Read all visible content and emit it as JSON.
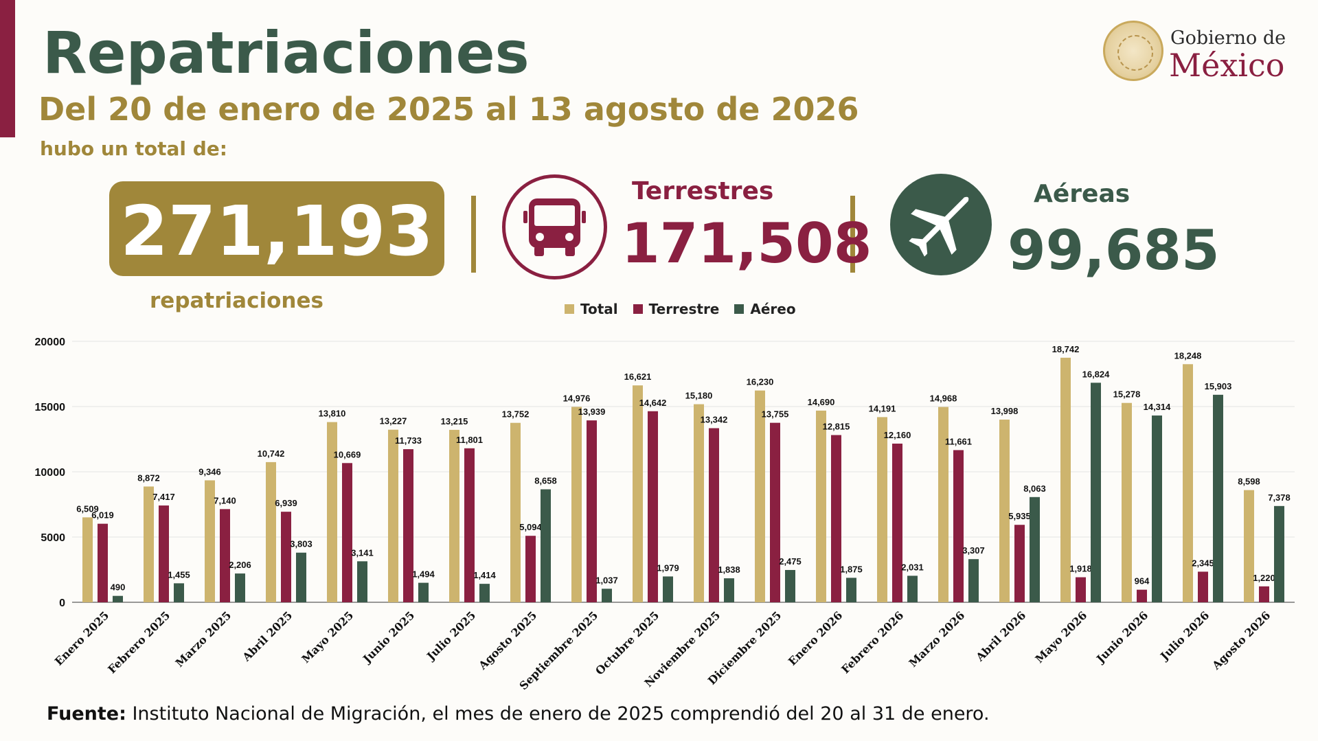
{
  "header": {
    "title": "Repatriaciones",
    "subtitle": "Del 20 de enero de 2025 al 13 agosto de 2026",
    "lead": "hubo un total de:"
  },
  "logo": {
    "line1": "Gobierno de",
    "line2": "México"
  },
  "summary": {
    "total_value": "271,193",
    "total_caption": "repatriaciones",
    "terrestres_label": "Terrestres",
    "terrestres_value": "171,508",
    "aereas_label": "Aéreas",
    "aereas_value": "99,685",
    "icons": [
      "bus-icon",
      "airplane-icon"
    ]
  },
  "colors": {
    "gold": "#a0873a",
    "total_bar": "#cdb46e",
    "terrestre_bar": "#8a2041",
    "aereo_bar": "#3b5a4a",
    "title_green": "#3b5a4a"
  },
  "footer": {
    "source_label": "Fuente:",
    "source_text": " Instituto Nacional de Migración, el mes de enero de 2025 comprendió del 20 al 31 de enero."
  },
  "chart_data": {
    "type": "bar",
    "categories": [
      "Enero 2025",
      "Febrero 2025",
      "Marzo 2025",
      "Abril 2025",
      "Mayo 2025",
      "Junio 2025",
      "Julio 2025",
      "Agosto 2025",
      "Septiembre 2025",
      "Octubre 2025",
      "Noviembre 2025",
      "Diciembre 2025",
      "Enero 2026",
      "Febrero 2026",
      "Marzo 2026",
      "Abril 2026",
      "Mayo 2026",
      "Junio 2026",
      "Julio 2026",
      "Agosto 2026"
    ],
    "series": [
      {
        "name": "Total",
        "values": [
          6509,
          8872,
          9346,
          10742,
          13810,
          13227,
          13215,
          13752,
          14976,
          16621,
          15180,
          16230,
          14690,
          14191,
          14968,
          13998,
          18742,
          15278,
          18248,
          8598
        ]
      },
      {
        "name": "Terrestre",
        "values": [
          6019,
          7417,
          7140,
          6939,
          10669,
          11733,
          11801,
          5094,
          13939,
          14642,
          13342,
          13755,
          12815,
          12160,
          11661,
          5935,
          1918,
          964,
          2345,
          1220
        ]
      },
      {
        "name": "Aéreo",
        "values": [
          490,
          1455,
          2206,
          3803,
          3141,
          1494,
          1414,
          8658,
          1037,
          1979,
          1838,
          2475,
          1875,
          2031,
          3307,
          8063,
          16824,
          14314,
          15903,
          7378
        ]
      }
    ],
    "yticks": [
      "0",
      "5000",
      "10000",
      "15000",
      "20000"
    ],
    "ylim": [
      0,
      20000
    ],
    "grid": true,
    "legend_placement": "top-center"
  }
}
